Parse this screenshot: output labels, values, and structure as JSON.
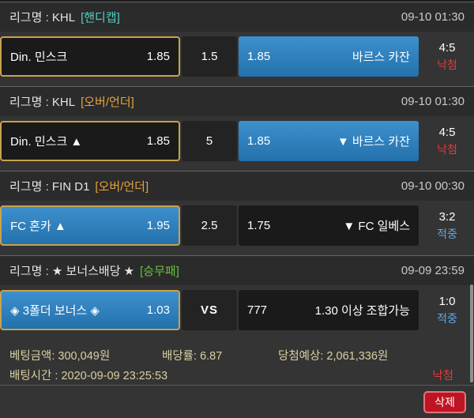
{
  "sections": [
    {
      "league": "리그명 : KHL",
      "market": "[핸디캡]",
      "datetime": "09-10 01:30",
      "home": {
        "name": "Din. 민스크",
        "odds": "1.85"
      },
      "line": "1.5",
      "away": {
        "odds": "1.85",
        "name": "바르스 카잔"
      },
      "score": "4:5",
      "result": "낙첨"
    },
    {
      "league": "리그명 : KHL",
      "market": "[오버/언더]",
      "datetime": "09-10 01:30",
      "home": {
        "name": "Din. 민스크 ▲",
        "odds": "1.85"
      },
      "line": "5",
      "away": {
        "odds": "1.85",
        "name": "▼ 바르스 카잔"
      },
      "score": "4:5",
      "result": "낙첨"
    },
    {
      "league": "리그명 : FIN D1",
      "market": "[오버/언더]",
      "datetime": "09-10 00:30",
      "home": {
        "name": "FC 혼카 ▲",
        "odds": "1.95"
      },
      "line": "2.5",
      "away": {
        "odds": "1.75",
        "name": "▼ FC 일베스"
      },
      "score": "3:2",
      "result": "적중"
    },
    {
      "league": "리그명 : ★ 보너스배당 ★",
      "market": "[승무패]",
      "datetime": "09-09 23:59",
      "home": {
        "name": "◈ 3폴더 보너스 ◈",
        "odds": "1.03"
      },
      "line": "VS",
      "away": {
        "odds": "777",
        "name": "1.30 이상 조합가능"
      },
      "score": "1:0",
      "result": "적중"
    }
  ],
  "summary": {
    "bet_amount": "베팅금액: 300,049원",
    "odds_rate": "배당률: 6.87",
    "expected_win": "당첨예상: 2,061,336원",
    "bet_time": "배팅시간 : 2020-09-09 23:25:53",
    "overall_result": "낙첨"
  },
  "footer": {
    "delete_label": "삭제"
  },
  "colors": {
    "market_handicap": "#4fd0c0",
    "market_over_under": "#e6a23c",
    "market_win_draw_lose": "#67c23a",
    "result_lose": "#e03c3c",
    "result_win": "#64a8e8",
    "pick_border": "#c9a24b",
    "winning_cell_blue": "#2b7fc0",
    "delete_button_red": "#bf1423"
  }
}
